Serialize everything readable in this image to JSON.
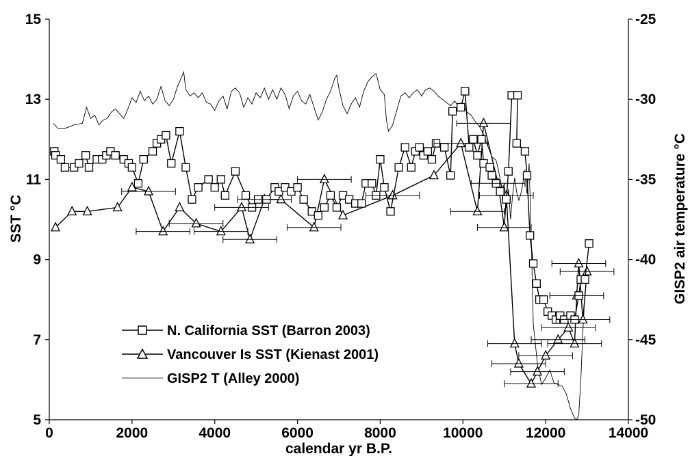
{
  "chart_data": {
    "type": "line",
    "xlabel": "calendar yr B.P.",
    "ylabel": "SST °C",
    "y2label": "GISP2 air temperature °C",
    "xlim": [
      0,
      14000
    ],
    "ylim": [
      5,
      15
    ],
    "y2lim": [
      -50,
      -25
    ],
    "x_ticks": [
      "0",
      "2000",
      "4000",
      "6000",
      "8000",
      "10000",
      "12000",
      "14000"
    ],
    "y_ticks": [
      "5",
      "7",
      "9",
      "11",
      "13",
      "15"
    ],
    "y2_ticks": [
      "-50",
      "-45",
      "-40",
      "-35",
      "-30",
      "-25"
    ],
    "grid": false,
    "legend_position": "bottom-left",
    "series": [
      {
        "name": "N. California SST (Barron 2003)",
        "marker": "square",
        "axis": "left",
        "points": [
          [
            120,
            11.7
          ],
          [
            150,
            11.6
          ],
          [
            280,
            11.5
          ],
          [
            380,
            11.3
          ],
          [
            600,
            11.3
          ],
          [
            720,
            11.4
          ],
          [
            880,
            11.6
          ],
          [
            960,
            11.3
          ],
          [
            1150,
            11.5
          ],
          [
            1280,
            11.5
          ],
          [
            1380,
            11.6
          ],
          [
            1480,
            11.7
          ],
          [
            1600,
            11.6
          ],
          [
            1800,
            11.5
          ],
          [
            1920,
            11.4
          ],
          [
            2000,
            11.3
          ],
          [
            2150,
            10.9
          ],
          [
            2280,
            11.5
          ],
          [
            2500,
            11.7
          ],
          [
            2600,
            11.9
          ],
          [
            2700,
            12.0
          ],
          [
            2820,
            12.1
          ],
          [
            2950,
            11.4
          ],
          [
            3150,
            12.2
          ],
          [
            3300,
            11.3
          ],
          [
            3450,
            10.5
          ],
          [
            3600,
            10.8
          ],
          [
            3850,
            11.0
          ],
          [
            4000,
            10.8
          ],
          [
            4150,
            11.0
          ],
          [
            4250,
            10.6
          ],
          [
            4500,
            11.2
          ],
          [
            4750,
            10.6
          ],
          [
            4900,
            10.3
          ],
          [
            5050,
            10.5
          ],
          [
            5250,
            10.5
          ],
          [
            5450,
            10.8
          ],
          [
            5550,
            10.7
          ],
          [
            5700,
            10.8
          ],
          [
            5850,
            10.7
          ],
          [
            6000,
            10.8
          ],
          [
            6150,
            10.5
          ],
          [
            6350,
            10.2
          ],
          [
            6500,
            10.1
          ],
          [
            6650,
            10.3
          ],
          [
            6800,
            10.6
          ],
          [
            6950,
            10.3
          ],
          [
            7100,
            10.6
          ],
          [
            7250,
            10.5
          ],
          [
            7400,
            10.4
          ],
          [
            7550,
            10.4
          ],
          [
            7650,
            10.9
          ],
          [
            7800,
            10.9
          ],
          [
            7900,
            10.6
          ],
          [
            8000,
            11.5
          ],
          [
            8100,
            10.8
          ],
          [
            8250,
            10.2
          ],
          [
            8450,
            11.3
          ],
          [
            8600,
            11.8
          ],
          [
            8750,
            11.3
          ],
          [
            8850,
            11.7
          ],
          [
            8950,
            11.8
          ],
          [
            9050,
            11.6
          ],
          [
            9150,
            11.7
          ],
          [
            9250,
            11.5
          ],
          [
            9350,
            11.9
          ],
          [
            9550,
            11.8
          ],
          [
            9700,
            11.1
          ],
          [
            9750,
            12.7
          ],
          [
            9950,
            12.8
          ],
          [
            10050,
            13.2
          ],
          [
            10150,
            11.8
          ],
          [
            10250,
            12.0
          ],
          [
            10350,
            11.6
          ],
          [
            10450,
            12.0
          ],
          [
            10500,
            11.4
          ],
          [
            10650,
            11.3
          ],
          [
            10700,
            11.1
          ],
          [
            10800,
            10.9
          ],
          [
            10900,
            10.7
          ],
          [
            11050,
            10.5
          ],
          [
            11100,
            11.2
          ],
          [
            11180,
            13.1
          ],
          [
            11320,
            13.1
          ],
          [
            11300,
            11.9
          ],
          [
            11500,
            11.7
          ],
          [
            11550,
            11.1
          ],
          [
            11620,
            9.6
          ],
          [
            11700,
            8.9
          ],
          [
            11780,
            8.4
          ],
          [
            11850,
            8.0
          ],
          [
            11950,
            8.0
          ],
          [
            12050,
            7.7
          ],
          [
            12150,
            7.6
          ],
          [
            12250,
            7.5
          ],
          [
            12350,
            7.6
          ],
          [
            12450,
            7.5
          ],
          [
            12600,
            7.6
          ],
          [
            12700,
            7.5
          ],
          [
            12800,
            8.1
          ],
          [
            12850,
            8.5
          ],
          [
            12950,
            8.5
          ],
          [
            13050,
            9.4
          ]
        ]
      },
      {
        "name": "Vancouver Is SST (Kienast 2001)",
        "marker": "triangle",
        "axis": "left",
        "points": [
          [
            150,
            9.8
          ],
          [
            550,
            10.2
          ],
          [
            920,
            10.2
          ],
          [
            1650,
            10.3
          ],
          [
            2000,
            10.8
          ],
          [
            2400,
            10.7
          ],
          [
            2750,
            9.7
          ],
          [
            3150,
            10.3
          ],
          [
            3550,
            9.9
          ],
          [
            4150,
            9.7
          ],
          [
            4650,
            10.3
          ],
          [
            4850,
            9.5
          ],
          [
            5200,
            10.5
          ],
          [
            5600,
            10.5
          ],
          [
            6400,
            9.8
          ],
          [
            6650,
            11.0
          ],
          [
            7100,
            10.1
          ],
          [
            8300,
            10.6
          ],
          [
            9300,
            11.1
          ],
          [
            9950,
            11.9
          ],
          [
            10350,
            10.2
          ],
          [
            10500,
            12.4
          ],
          [
            10850,
            10.9
          ],
          [
            11000,
            9.8
          ],
          [
            11050,
            10.6
          ],
          [
            11250,
            6.9
          ],
          [
            11350,
            6.4
          ],
          [
            11650,
            5.9
          ],
          [
            11800,
            6.2
          ],
          [
            12000,
            6.6
          ],
          [
            12300,
            7.0
          ],
          [
            12550,
            7.3
          ],
          [
            12700,
            6.9
          ],
          [
            12750,
            8.1
          ],
          [
            12800,
            8.9
          ],
          [
            12900,
            7.5
          ],
          [
            13000,
            8.7
          ]
        ]
      },
      {
        "name": "GISP2 T (Alley 2000)",
        "marker": "none",
        "axis": "right",
        "points": [
          [
            100,
            -31.5
          ],
          [
            200,
            -31.8
          ],
          [
            400,
            -31.8
          ],
          [
            600,
            -31.6
          ],
          [
            800,
            -31.5
          ],
          [
            900,
            -30.5
          ],
          [
            1000,
            -31.2
          ],
          [
            1100,
            -31.0
          ],
          [
            1200,
            -31.6
          ],
          [
            1300,
            -31.3
          ],
          [
            1400,
            -31.2
          ],
          [
            1500,
            -30.8
          ],
          [
            1600,
            -30.6
          ],
          [
            1700,
            -30.9
          ],
          [
            1800,
            -31.2
          ],
          [
            1900,
            -30.6
          ],
          [
            2000,
            -29.9
          ],
          [
            2100,
            -30.2
          ],
          [
            2200,
            -29.5
          ],
          [
            2300,
            -30.1
          ],
          [
            2400,
            -29.8
          ],
          [
            2500,
            -30.3
          ],
          [
            2600,
            -30.0
          ],
          [
            2700,
            -29.2
          ],
          [
            2800,
            -30.1
          ],
          [
            2900,
            -30.4
          ],
          [
            3000,
            -30.0
          ],
          [
            3100,
            -29.2
          ],
          [
            3200,
            -28.6
          ],
          [
            3250,
            -28.3
          ],
          [
            3300,
            -29.4
          ],
          [
            3400,
            -29.8
          ],
          [
            3500,
            -29.6
          ],
          [
            3600,
            -29.9
          ],
          [
            3700,
            -29.6
          ],
          [
            3800,
            -30.2
          ],
          [
            3900,
            -30.3
          ],
          [
            4000,
            -30.7
          ],
          [
            4100,
            -30.1
          ],
          [
            4200,
            -29.8
          ],
          [
            4300,
            -30.6
          ],
          [
            4400,
            -29.5
          ],
          [
            4500,
            -29.3
          ],
          [
            4600,
            -29.6
          ],
          [
            4700,
            -30.5
          ],
          [
            4800,
            -29.9
          ],
          [
            4900,
            -30.3
          ],
          [
            5000,
            -29.6
          ],
          [
            5100,
            -29.9
          ],
          [
            5200,
            -29.3
          ],
          [
            5300,
            -30.0
          ],
          [
            5400,
            -29.4
          ],
          [
            5500,
            -30.0
          ],
          [
            5600,
            -29.3
          ],
          [
            5700,
            -29.7
          ],
          [
            5800,
            -30.6
          ],
          [
            5900,
            -29.8
          ],
          [
            6000,
            -29.5
          ],
          [
            6100,
            -30.1
          ],
          [
            6200,
            -30.3
          ],
          [
            6300,
            -29.7
          ],
          [
            6400,
            -30.5
          ],
          [
            6500,
            -31.3
          ],
          [
            6600,
            -30.8
          ],
          [
            6700,
            -30.0
          ],
          [
            6800,
            -29.5
          ],
          [
            6900,
            -28.7
          ],
          [
            6950,
            -28.5
          ],
          [
            7000,
            -29.3
          ],
          [
            7100,
            -30.4
          ],
          [
            7200,
            -30.9
          ],
          [
            7300,
            -30.3
          ],
          [
            7400,
            -29.9
          ],
          [
            7500,
            -30.5
          ],
          [
            7600,
            -29.5
          ],
          [
            7700,
            -28.9
          ],
          [
            7800,
            -28.6
          ],
          [
            7900,
            -28.4
          ],
          [
            8000,
            -29.4
          ],
          [
            8100,
            -29.7
          ],
          [
            8150,
            -31.3
          ],
          [
            8200,
            -32.0
          ],
          [
            8300,
            -31.6
          ],
          [
            8400,
            -30.7
          ],
          [
            8500,
            -29.8
          ],
          [
            8600,
            -29.6
          ],
          [
            8700,
            -29.9
          ],
          [
            8800,
            -29.6
          ],
          [
            8900,
            -29.4
          ],
          [
            9000,
            -29.8
          ],
          [
            9100,
            -29.4
          ],
          [
            9200,
            -29.3
          ],
          [
            9300,
            -29.5
          ],
          [
            9400,
            -29.8
          ],
          [
            9500,
            -30.0
          ],
          [
            9600,
            -30.2
          ],
          [
            9700,
            -30.4
          ],
          [
            9800,
            -30.1
          ],
          [
            9900,
            -30.5
          ],
          [
            10000,
            -30.3
          ],
          [
            10100,
            -30.8
          ],
          [
            10200,
            -31.0
          ],
          [
            10300,
            -31.4
          ],
          [
            10400,
            -31.7
          ],
          [
            10500,
            -32.2
          ],
          [
            10600,
            -32.9
          ],
          [
            10700,
            -33.6
          ],
          [
            10800,
            -33.8
          ],
          [
            10850,
            -34.3
          ],
          [
            10900,
            -35.0
          ],
          [
            10950,
            -35.8
          ],
          [
            11000,
            -35.2
          ],
          [
            11050,
            -36.8
          ],
          [
            11100,
            -35.6
          ],
          [
            11150,
            -37.5
          ],
          [
            11200,
            -36.0
          ],
          [
            11250,
            -34.9
          ],
          [
            11300,
            -35.8
          ],
          [
            11350,
            -36.3
          ],
          [
            11400,
            -35.9
          ],
          [
            11450,
            -35.2
          ],
          [
            11500,
            -34.4
          ],
          [
            11550,
            -35.9
          ],
          [
            11600,
            -34.0
          ],
          [
            11650,
            -38.5
          ],
          [
            11700,
            -44.0
          ],
          [
            11800,
            -46.5
          ],
          [
            11900,
            -47.8
          ],
          [
            12000,
            -47.4
          ],
          [
            12100,
            -46.9
          ],
          [
            12200,
            -47.7
          ],
          [
            12300,
            -47.8
          ],
          [
            12400,
            -47.9
          ],
          [
            12500,
            -48.4
          ],
          [
            12600,
            -49.3
          ],
          [
            12700,
            -49.9
          ],
          [
            12750,
            -50.0
          ],
          [
            12800,
            -49.7
          ],
          [
            12850,
            -47.5
          ],
          [
            12900,
            -44.5
          ],
          [
            12950,
            -42.0
          ]
        ]
      }
    ]
  }
}
